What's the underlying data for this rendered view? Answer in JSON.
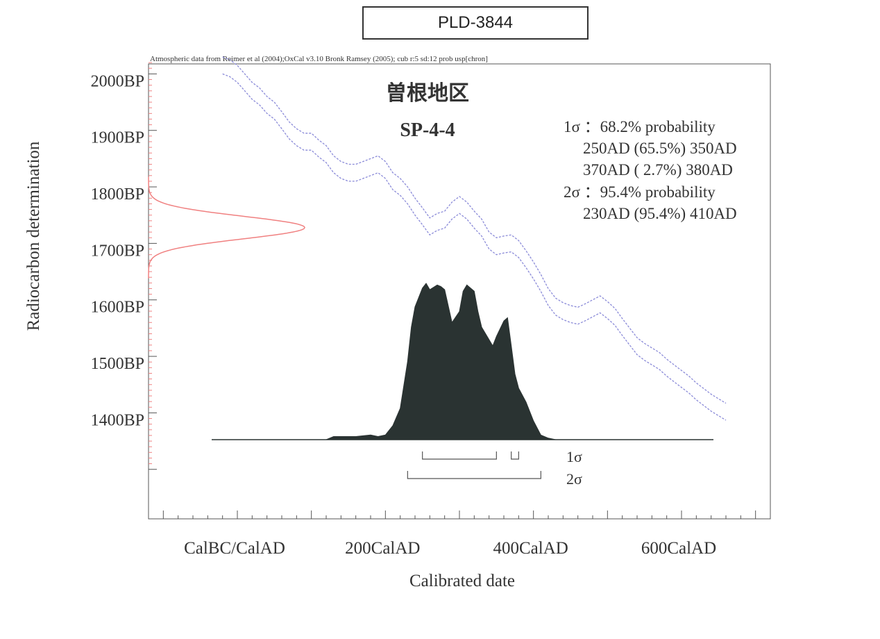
{
  "sample_id": "PLD-3844",
  "chart_data": {
    "type": "area",
    "subtitle": "Atmospheric data from Reimer et al (2004);OxCal v3.10 Bronk Ramsey (2005); cub r:5 sd:12 prob usp[chron]",
    "title": "曽根地区",
    "sample_label": "SP-4-4",
    "xlabel": "Calibrated date",
    "ylabel": "Radiocarbon determination",
    "x_ticks": [
      {
        "value": 0,
        "label": "CalBC/CalAD"
      },
      {
        "value": 200,
        "label": "200CalAD"
      },
      {
        "value": 400,
        "label": "400CalAD"
      },
      {
        "value": 600,
        "label": "600CalAD"
      }
    ],
    "y_ticks": [
      {
        "value": 2000,
        "label": "2000BP"
      },
      {
        "value": 1900,
        "label": "1900BP"
      },
      {
        "value": 1800,
        "label": "1800BP"
      },
      {
        "value": 1700,
        "label": "1700BP"
      },
      {
        "value": 1600,
        "label": "1600BP"
      },
      {
        "value": 1500,
        "label": "1500BP"
      },
      {
        "value": 1400,
        "label": "1400BP"
      }
    ],
    "xlim": [
      -120,
      720
    ],
    "ylim": [
      1280,
      2030
    ],
    "radiocarbon_measurement": {
      "mean_bp": 1728,
      "sd": 20
    },
    "calibration_curve": {
      "x": [
        -20,
        -10,
        0,
        10,
        20,
        30,
        40,
        50,
        60,
        70,
        80,
        90,
        100,
        110,
        120,
        130,
        140,
        150,
        160,
        170,
        180,
        190,
        200,
        210,
        220,
        230,
        240,
        250,
        260,
        270,
        280,
        290,
        300,
        310,
        320,
        330,
        340,
        350,
        360,
        370,
        380,
        390,
        400,
        410,
        420,
        430,
        440,
        450,
        460,
        470,
        480,
        490,
        500,
        510,
        520,
        530,
        540,
        550,
        560,
        570,
        580,
        590,
        600,
        610,
        620,
        630,
        640,
        650,
        660
      ],
      "y": [
        2015,
        2010,
        2000,
        1985,
        1970,
        1960,
        1945,
        1935,
        1918,
        1900,
        1888,
        1880,
        1880,
        1868,
        1858,
        1840,
        1830,
        1825,
        1825,
        1830,
        1835,
        1840,
        1830,
        1810,
        1800,
        1785,
        1765,
        1748,
        1730,
        1738,
        1742,
        1758,
        1768,
        1758,
        1742,
        1728,
        1705,
        1695,
        1698,
        1700,
        1690,
        1672,
        1652,
        1630,
        1605,
        1588,
        1580,
        1575,
        1572,
        1578,
        1585,
        1592,
        1582,
        1570,
        1552,
        1535,
        1518,
        1508,
        1500,
        1492,
        1480,
        1470,
        1460,
        1450,
        1438,
        1428,
        1418,
        1410,
        1402
      ],
      "band_half_width": 15
    },
    "probability_distribution": {
      "x": [
        120,
        130,
        140,
        150,
        160,
        170,
        180,
        190,
        200,
        210,
        220,
        230,
        235,
        240,
        250,
        255,
        260,
        270,
        275,
        280,
        290,
        300,
        305,
        310,
        320,
        325,
        330,
        340,
        345,
        350,
        360,
        365,
        370,
        375,
        380,
        390,
        400,
        410,
        420,
        430
      ],
      "y": [
        0,
        0.02,
        0.02,
        0.02,
        0.02,
        0.025,
        0.03,
        0.02,
        0.03,
        0.09,
        0.2,
        0.5,
        0.72,
        0.85,
        0.97,
        1.0,
        0.96,
        0.99,
        0.98,
        0.96,
        0.75,
        0.82,
        0.95,
        0.99,
        0.95,
        0.82,
        0.72,
        0.64,
        0.6,
        0.66,
        0.76,
        0.78,
        0.6,
        0.42,
        0.33,
        0.24,
        0.12,
        0.03,
        0.01,
        0
      ]
    },
    "ranges": {
      "one_sigma": {
        "label": "1σ",
        "summary": "1σ ：68.2% probability",
        "intervals": [
          {
            "from": 250,
            "to": 350,
            "text": "250AD (65.5%) 350AD"
          },
          {
            "from": 370,
            "to": 380,
            "text": "370AD ( 2.7%) 380AD"
          }
        ]
      },
      "two_sigma": {
        "label": "2σ",
        "summary": "2σ ：95.4% probability",
        "intervals": [
          {
            "from": 230,
            "to": 410,
            "text": "230AD (95.4%) 410AD"
          }
        ]
      }
    },
    "colors": {
      "distribution_fill": "#2a3332",
      "curve": "#8a8ad8",
      "measurement": "#f08080",
      "axis": "#555555"
    }
  }
}
